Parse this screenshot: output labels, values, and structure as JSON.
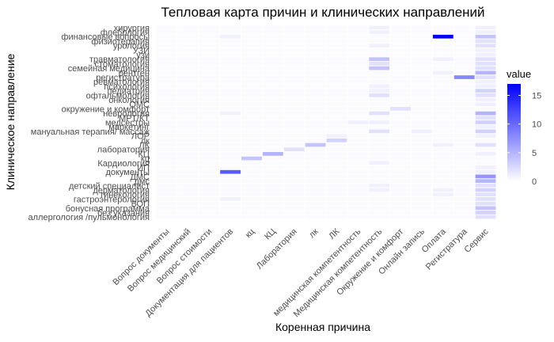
{
  "chart_data": {
    "type": "heatmap",
    "title": "Тепловая карта причин и клинических направлений",
    "xlabel": "Коренная причина",
    "ylabel": "Клиническое направление",
    "x_categories": [
      "Вопрос документы",
      "Вопрос медицинский",
      "Вопрос стоимости",
      "Документация для пациентов",
      "кц",
      "КЦ",
      "Лаборатория",
      "лк",
      "ЛК",
      "медицинская компетентность",
      "Медицинская компетентность",
      "Окружение и комфорт",
      "Онлайн запись",
      "Оплата",
      "Регистратура",
      "Сервис"
    ],
    "y_categories": [
      "хирургия",
      "флебология",
      "финансовые вопросы",
      "физиотерапия",
      "урология",
      "УЗИ",
      "узи",
      "травматология",
      "стоматология",
      "семейная медицина",
      "рентген",
      "регистратура",
      "ревматология",
      "психология",
      "педиатрия",
      "офтальмология",
      "онкология",
      "ОМС",
      "окружение и комфорт",
      "неврология",
      "МРТ/КТ",
      "медсестры",
      "маркетинг",
      "мануальная терапия/ массаж",
      "ЛОР",
      "лк",
      "ЛК",
      "лаборатория",
      "КЦ",
      "кц",
      "Кардиология",
      "ИП",
      "документы",
      "ДМС",
      "дмс",
      "детский специалист",
      "дерматология",
      "гинекология",
      "гастроэнтерология",
      "ВОП",
      "бонусная программа",
      "без указания",
      "аллергология /пульмонология"
    ],
    "cells": [
      {
        "x": "Медицинская компетентность",
        "y": "хирургия",
        "value": 1
      },
      {
        "x": "Сервис",
        "y": "хирургия",
        "value": 1
      },
      {
        "x": "Медицинская компетентность",
        "y": "флебология",
        "value": 1
      },
      {
        "x": "Сервис",
        "y": "флебология",
        "value": 1
      },
      {
        "x": "Документация для пациентов",
        "y": "финансовые вопросы",
        "value": 1
      },
      {
        "x": "Оплата",
        "y": "финансовые вопросы",
        "value": 17
      },
      {
        "x": "Сервис",
        "y": "финансовые вопросы",
        "value": 4
      },
      {
        "x": "Сервис",
        "y": "физиотерапия",
        "value": 2
      },
      {
        "x": "Сервис",
        "y": "урология",
        "value": 2
      },
      {
        "x": "Медицинская компетентность",
        "y": "урология",
        "value": 1
      },
      {
        "x": "Сервис",
        "y": "УЗИ",
        "value": 1
      },
      {
        "x": "Сервис",
        "y": "узи",
        "value": 1
      },
      {
        "x": "Медицинская компетентность",
        "y": "травматология",
        "value": 4
      },
      {
        "x": "Оплата",
        "y": "травматология",
        "value": 1
      },
      {
        "x": "Сервис",
        "y": "травматология",
        "value": 2
      },
      {
        "x": "Медицинская компетентность",
        "y": "стоматология",
        "value": 2
      },
      {
        "x": "Сервис",
        "y": "стоматология",
        "value": 2
      },
      {
        "x": "Медицинская компетентность",
        "y": "семейная медицина",
        "value": 4
      },
      {
        "x": "Сервис",
        "y": "семейная медицина",
        "value": 2
      },
      {
        "x": "Оплата",
        "y": "рентген",
        "value": 1
      },
      {
        "x": "Сервис",
        "y": "рентген",
        "value": 5
      },
      {
        "x": "Регистратура",
        "y": "регистратура",
        "value": 8
      },
      {
        "x": "Сервис",
        "y": "регистратура",
        "value": 2
      },
      {
        "x": "Сервис",
        "y": "ревматология",
        "value": 1
      },
      {
        "x": "Медицинская компетентность",
        "y": "психология",
        "value": 1
      },
      {
        "x": "Сервис",
        "y": "психология",
        "value": 1
      },
      {
        "x": "Медицинская компетентность",
        "y": "педиатрия",
        "value": 1
      },
      {
        "x": "Сервис",
        "y": "педиатрия",
        "value": 3
      },
      {
        "x": "Медицинская компетентность",
        "y": "офтальмология",
        "value": 2
      },
      {
        "x": "Сервис",
        "y": "офтальмология",
        "value": 2
      },
      {
        "x": "Сервис",
        "y": "онкология",
        "value": 1
      },
      {
        "x": "Сервис",
        "y": "ОМС",
        "value": 1
      },
      {
        "x": "Окружение и комфорт",
        "y": "окружение и комфорт",
        "value": 2
      },
      {
        "x": "Документация для пациентов",
        "y": "неврология",
        "value": 1
      },
      {
        "x": "Медицинская компетентность",
        "y": "неврология",
        "value": 2
      },
      {
        "x": "Сервис",
        "y": "неврология",
        "value": 5
      },
      {
        "x": "Сервис",
        "y": "МРТ/КТ",
        "value": 2
      },
      {
        "x": "медицинская компетентность",
        "y": "медсестры",
        "value": 1
      },
      {
        "x": "Медицинская компетентность",
        "y": "медсестры",
        "value": 1
      },
      {
        "x": "Сервис",
        "y": "медсестры",
        "value": 3
      },
      {
        "x": "Сервис",
        "y": "маркетинг",
        "value": 1
      },
      {
        "x": "Медицинская компетентность",
        "y": "мануальная терапия/ массаж",
        "value": 2
      },
      {
        "x": "Онлайн запись",
        "y": "мануальная терапия/ массаж",
        "value": 1
      },
      {
        "x": "Сервис",
        "y": "мануальная терапия/ массаж",
        "value": 3
      },
      {
        "x": "ЛК",
        "y": "ЛОР",
        "value": 1
      },
      {
        "x": "Сервис",
        "y": "ЛОР",
        "value": 1
      },
      {
        "x": "ЛК",
        "y": "лк",
        "value": 3
      },
      {
        "x": "лк",
        "y": "ЛК",
        "value": 4
      },
      {
        "x": "Оплата",
        "y": "ЛК",
        "value": 1
      },
      {
        "x": "Сервис",
        "y": "ЛК",
        "value": 2
      },
      {
        "x": "Лаборатория",
        "y": "лаборатория",
        "value": 2
      },
      {
        "x": "КЦ",
        "y": "КЦ",
        "value": 5
      },
      {
        "x": "Сервис",
        "y": "КЦ",
        "value": 1
      },
      {
        "x": "кц",
        "y": "кц",
        "value": 4
      },
      {
        "x": "Медицинская компетентность",
        "y": "Кардиология",
        "value": 1
      },
      {
        "x": "Сервис",
        "y": "ИП",
        "value": 1
      },
      {
        "x": "Документация для пациентов",
        "y": "документы",
        "value": 11
      },
      {
        "x": "Сервис",
        "y": "документы",
        "value": 1
      },
      {
        "x": "Сервис",
        "y": "ДМС",
        "value": 7
      },
      {
        "x": "Сервис",
        "y": "дмс",
        "value": 5
      },
      {
        "x": "Медицинская компетентность",
        "y": "детский специалист",
        "value": 1
      },
      {
        "x": "Сервис",
        "y": "детский специалист",
        "value": 2
      },
      {
        "x": "Медицинская компетентность",
        "y": "дерматология",
        "value": 1
      },
      {
        "x": "Оплата",
        "y": "дерматология",
        "value": 1
      },
      {
        "x": "Сервис",
        "y": "дерматология",
        "value": 3
      },
      {
        "x": "Оплата",
        "y": "гинекология",
        "value": 1
      },
      {
        "x": "Сервис",
        "y": "гинекология",
        "value": 2
      },
      {
        "x": "Документация для пациентов",
        "y": "гастроэнтерология",
        "value": 1
      },
      {
        "x": "Сервис",
        "y": "гастроэнтерология",
        "value": 2
      },
      {
        "x": "Сервис",
        "y": "ВОП",
        "value": 2
      },
      {
        "x": "Сервис",
        "y": "бонусная программа",
        "value": 4
      },
      {
        "x": "Сервис",
        "y": "без указания",
        "value": 3
      },
      {
        "x": "Сервис",
        "y": "аллергология /пульмонология",
        "value": 2
      }
    ],
    "legend": {
      "title": "value",
      "ticks": [
        0,
        5,
        10,
        15
      ],
      "min": 0,
      "max": 17,
      "low_color": "#ffffff",
      "high_color": "#0000ff",
      "placement": "right"
    },
    "grid": false
  }
}
